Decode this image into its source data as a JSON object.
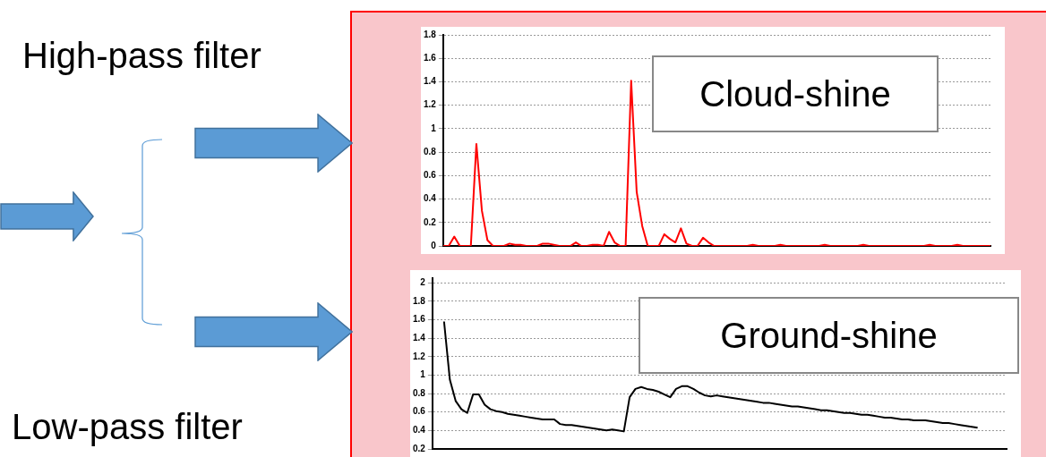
{
  "chart_data": [
    {
      "type": "line",
      "annotations": [
        "High-pass filter",
        "Cloud-shine"
      ],
      "categories": [
        null,
        null,
        null,
        null,
        null,
        null,
        null,
        null,
        null,
        null,
        null,
        null,
        null,
        null,
        null,
        null,
        null,
        null,
        null,
        null,
        null,
        null,
        null,
        null,
        null,
        null,
        null,
        null,
        null,
        null,
        null,
        null,
        null,
        null,
        null,
        null,
        null,
        null,
        null,
        null,
        null,
        null,
        null,
        null,
        null,
        null,
        null,
        null,
        null,
        null,
        null,
        null,
        null,
        null,
        null,
        null,
        null,
        null,
        null,
        null,
        null,
        null,
        null,
        null,
        null,
        null,
        null,
        null,
        null,
        null,
        null,
        null,
        null,
        null,
        null,
        null,
        null,
        null,
        null,
        null,
        null,
        null,
        null,
        null,
        null,
        null,
        null,
        null,
        null,
        null,
        null,
        null,
        null,
        null,
        null,
        null,
        null,
        null,
        null,
        null
      ],
      "series": [
        {
          "color": "#ff0000",
          "values": [
            0,
            0,
            0.08,
            0,
            0,
            0,
            0.87,
            0.3,
            0.05,
            0,
            0,
            0,
            0.02,
            0.01,
            0.01,
            0,
            0,
            0,
            0.02,
            0.02,
            0.01,
            0,
            0,
            0,
            0.03,
            0,
            0,
            0.01,
            0.01,
            0,
            0.12,
            0.03,
            0,
            0,
            1.41,
            0.46,
            0.17,
            0,
            0,
            0,
            0.1,
            0.06,
            0.03,
            0.15,
            0.02,
            0,
            0,
            0.07,
            0.03,
            0,
            0,
            0,
            0,
            0,
            0,
            0,
            0.01,
            0,
            0,
            0,
            0,
            0.01,
            0,
            0,
            0,
            0,
            0,
            0,
            0,
            0.01,
            0,
            0,
            0,
            0,
            0,
            0,
            0.01,
            0,
            0,
            0,
            0,
            0,
            0,
            0,
            0,
            0,
            0,
            0,
            0.01,
            0,
            0,
            0,
            0,
            0.01,
            0,
            0,
            0,
            0,
            0,
            0
          ]
        }
      ],
      "ylim": [
        0,
        1.8
      ],
      "yticks": [
        0,
        0.2,
        0.4,
        0.6,
        0.8,
        1,
        1.2,
        1.4,
        1.6,
        1.8
      ],
      "grid": "y",
      "tick_labels": "y",
      "marker": "none"
    },
    {
      "type": "line",
      "annotations": [
        "Low-pass filter",
        "Ground-shine"
      ],
      "categories": [
        null,
        null,
        null,
        null,
        null,
        null,
        null,
        null,
        null,
        null,
        null,
        null,
        null,
        null,
        null,
        null,
        null,
        null,
        null,
        null,
        null,
        null,
        null,
        null,
        null,
        null,
        null,
        null,
        null,
        null,
        null,
        null,
        null,
        null,
        null,
        null,
        null,
        null,
        null,
        null,
        null,
        null,
        null,
        null,
        null,
        null,
        null,
        null,
        null,
        null,
        null,
        null,
        null,
        null,
        null,
        null,
        null,
        null,
        null,
        null,
        null,
        null,
        null,
        null,
        null,
        null,
        null,
        null,
        null,
        null,
        null,
        null,
        null,
        null,
        null,
        null,
        null,
        null,
        null,
        null,
        null,
        null,
        null,
        null,
        null,
        null,
        null,
        null,
        null,
        null,
        null,
        null,
        null,
        null,
        null,
        null,
        null,
        null,
        null,
        null
      ],
      "series": [
        {
          "color": "#000000",
          "values": [
            null,
            null,
            1.58,
            0.95,
            0.72,
            0.63,
            0.59,
            0.79,
            0.79,
            0.68,
            0.63,
            0.61,
            0.6,
            0.58,
            0.57,
            0.56,
            0.55,
            0.54,
            0.53,
            0.52,
            0.52,
            0.52,
            0.47,
            0.46,
            0.46,
            0.45,
            0.44,
            0.43,
            0.42,
            0.41,
            0.4,
            0.41,
            0.4,
            0.39,
            0.76,
            0.85,
            0.87,
            0.85,
            0.84,
            0.82,
            0.79,
            0.76,
            0.85,
            0.88,
            0.88,
            0.85,
            0.81,
            0.78,
            0.77,
            0.78,
            0.77,
            0.76,
            0.75,
            0.74,
            0.73,
            0.72,
            0.71,
            0.7,
            0.7,
            0.69,
            0.68,
            0.67,
            0.66,
            0.66,
            0.65,
            0.64,
            0.63,
            0.62,
            0.62,
            0.61,
            0.6,
            0.59,
            0.59,
            0.58,
            0.57,
            0.57,
            0.56,
            0.55,
            0.54,
            0.54,
            0.53,
            0.52,
            0.52,
            0.51,
            0.51,
            0.51,
            0.5,
            0.49,
            0.48,
            0.48,
            0.47,
            0.46,
            0.45,
            0.44,
            0.43,
            null,
            null,
            null,
            null,
            null
          ]
        }
      ],
      "ylim": [
        0.2,
        2.05
      ],
      "yticks": [
        0.2,
        0.4,
        0.6,
        0.8,
        1,
        1.2,
        1.4,
        1.6,
        1.8,
        2
      ],
      "grid": "y",
      "tick_labels": "y",
      "marker": "none"
    }
  ]
}
